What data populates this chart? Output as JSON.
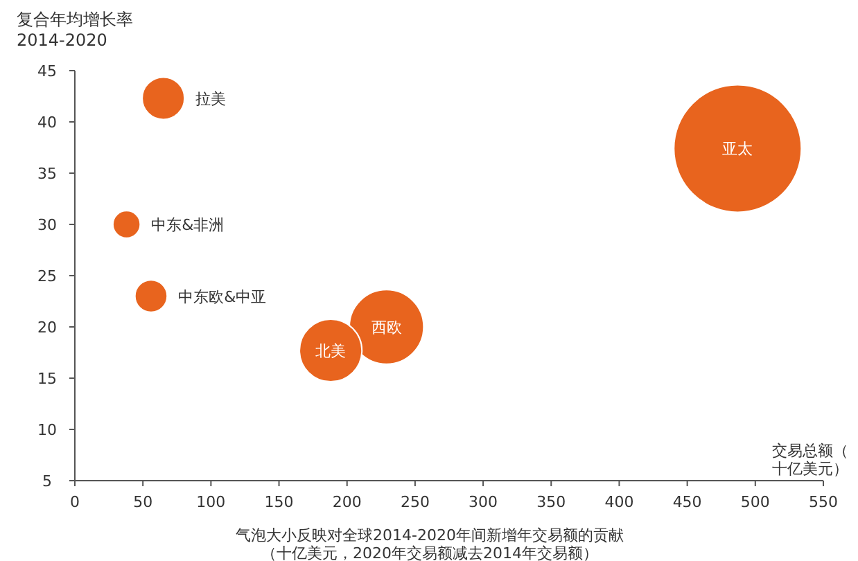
{
  "chart_data": {
    "type": "bubble",
    "ylabel": "复合年均增长率\n2014-2020",
    "xlabel": "交易总额（十亿美元）",
    "annotations": [
      "气泡大小反映对全球2014-2020年间新增年交易额的贡献",
      "（十亿美元，2020年交易额减去2014年交易额）"
    ],
    "xlim": [
      0,
      550
    ],
    "xticks": [
      0,
      50,
      100,
      150,
      200,
      250,
      300,
      350,
      400,
      450,
      500,
      550
    ],
    "ylim": [
      5,
      45
    ],
    "yticks": [
      5,
      10,
      15,
      20,
      25,
      30,
      35,
      40,
      45
    ],
    "grid": false,
    "series": [
      {
        "name": "拉美",
        "color": "#e8641e",
        "x": [
          65
        ],
        "values": [
          42.3
        ],
        "sizes": [
          0.11
        ]
      },
      {
        "name": "中东&非洲",
        "color": "#e8641e",
        "x": [
          38
        ],
        "values": [
          30
        ],
        "sizes": [
          0.046
        ]
      },
      {
        "name": "中东欧&中亚",
        "color": "#e8641e",
        "x": [
          56
        ],
        "values": [
          23
        ],
        "sizes": [
          0.064
        ]
      },
      {
        "name": "西欧",
        "color": "#e8641e",
        "x": [
          229
        ],
        "values": [
          20
        ],
        "sizes": [
          0.34
        ]
      },
      {
        "name": "北美",
        "color": "#e8641e",
        "x": [
          188
        ],
        "values": [
          17.7
        ],
        "sizes": [
          0.24
        ]
      },
      {
        "name": "亚太",
        "color": "#e8641e",
        "x": [
          487
        ],
        "values": [
          37.4
        ],
        "sizes": [
          1
        ]
      }
    ]
  }
}
